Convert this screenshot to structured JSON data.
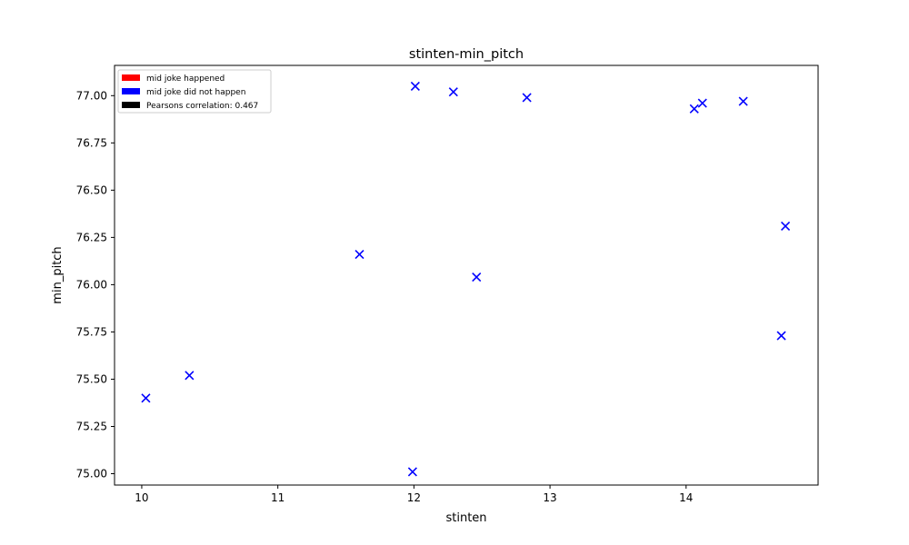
{
  "chart_data": {
    "type": "scatter",
    "title": "stinten-min_pitch",
    "xlabel": "stinten",
    "ylabel": "min_pitch",
    "xlim": [
      9.8,
      14.97
    ],
    "ylim": [
      74.94,
      77.16
    ],
    "x_ticks": [
      10,
      11,
      12,
      13,
      14
    ],
    "x_tick_labels": [
      "10",
      "11",
      "12",
      "13",
      "14"
    ],
    "y_ticks": [
      75.0,
      75.25,
      75.5,
      75.75,
      76.0,
      76.25,
      76.5,
      76.75,
      77.0
    ],
    "y_tick_labels": [
      "75.00",
      "75.25",
      "75.50",
      "75.75",
      "76.00",
      "76.25",
      "76.50",
      "76.75",
      "77.00"
    ],
    "grid": false,
    "legend_position": "top-left",
    "legend": [
      {
        "label": "mid joke happened",
        "color": "#ff0000"
      },
      {
        "label": "mid joke did not happen",
        "color": "#0000ff"
      },
      {
        "label": "Pearsons correlation: 0.467",
        "color": "#000000"
      }
    ],
    "marker": "x",
    "series": [
      {
        "color": "#0000ff",
        "points": [
          {
            "x": 10.03,
            "y": 75.4
          },
          {
            "x": 10.35,
            "y": 75.52
          },
          {
            "x": 11.6,
            "y": 76.16
          },
          {
            "x": 11.99,
            "y": 75.01
          },
          {
            "x": 12.01,
            "y": 77.05
          },
          {
            "x": 12.29,
            "y": 77.02
          },
          {
            "x": 12.46,
            "y": 76.04
          },
          {
            "x": 12.83,
            "y": 76.99
          },
          {
            "x": 14.06,
            "y": 76.93
          },
          {
            "x": 14.12,
            "y": 76.96
          },
          {
            "x": 14.42,
            "y": 76.97
          },
          {
            "x": 14.7,
            "y": 75.73
          },
          {
            "x": 14.73,
            "y": 76.31
          }
        ]
      }
    ]
  }
}
